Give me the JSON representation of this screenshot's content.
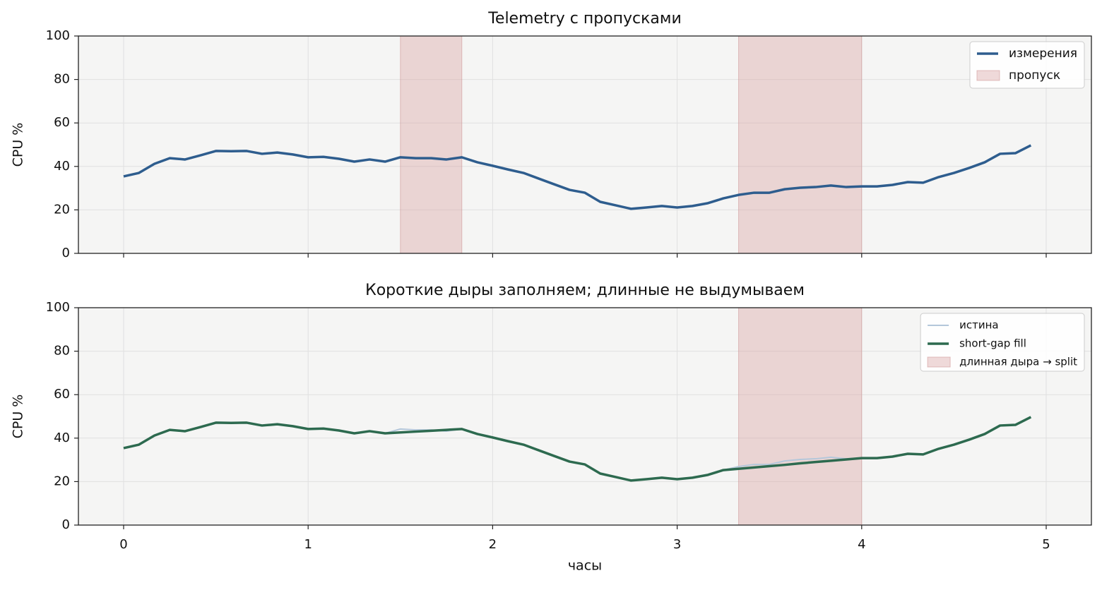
{
  "chart_data": [
    {
      "type": "line",
      "title": "Telemetry с пропусками",
      "ylabel": "CPU %",
      "x": [
        0,
        0.083,
        0.167,
        0.25,
        0.333,
        0.417,
        0.5,
        0.583,
        0.667,
        0.75,
        0.833,
        0.917,
        1.0,
        1.083,
        1.167,
        1.25,
        1.333,
        1.417,
        1.5,
        1.583,
        1.667,
        1.75,
        1.833,
        1.917,
        2.0,
        2.083,
        2.167,
        2.25,
        2.333,
        2.417,
        2.5,
        2.583,
        2.667,
        2.75,
        2.833,
        2.917,
        3.0,
        3.083,
        3.167,
        3.25,
        3.333,
        3.417,
        3.5,
        3.583,
        3.667,
        3.75,
        3.833,
        3.917,
        4.0,
        4.083,
        4.167,
        4.25,
        4.333,
        4.417,
        4.5,
        4.583,
        4.667,
        4.75,
        4.833,
        4.917
      ],
      "series": [
        {
          "name": "измерения",
          "color": "#2e5d8e",
          "width": 3.5,
          "values": [
            35.4,
            37,
            41.2,
            43.8,
            43.2,
            45.1,
            47.1,
            47,
            47.1,
            45.8,
            46.4,
            45.5,
            44.2,
            44.4,
            43.5,
            42.2,
            43.2,
            42.2,
            44.2,
            43.8,
            43.8,
            43.2,
            44.2,
            41.9,
            40.3,
            38.6,
            37,
            34.4,
            31.8,
            29.2,
            27.9,
            23.7,
            22.1,
            20.5,
            21.1,
            21.8,
            21.1,
            21.8,
            23.1,
            25.3,
            26.9,
            27.9,
            27.9,
            29.5,
            30.2,
            30.5,
            31.2,
            30.5,
            30.8,
            30.8,
            31.5,
            32.8,
            32.5,
            35.1,
            37,
            39.3,
            41.9,
            45.8,
            46.1,
            49.7
          ]
        }
      ],
      "spans": {
        "name": "пропуск",
        "color": "#d9a3a3",
        "ranges": [
          [
            1.5,
            1.833
          ],
          [
            3.333,
            4.0
          ]
        ]
      },
      "xlim": [
        -0.245,
        5.245
      ],
      "xticks": [
        0,
        1,
        2,
        3,
        4,
        5
      ],
      "ylim": [
        0,
        100
      ],
      "yticks": [
        0,
        20,
        40,
        60,
        80,
        100
      ],
      "grid": true,
      "legend": "upper right"
    },
    {
      "type": "line",
      "title": "Короткие дыры заполняем; длинные не выдумываем",
      "ylabel": "CPU %",
      "xlabel": "часы",
      "x": [
        0,
        0.083,
        0.167,
        0.25,
        0.333,
        0.417,
        0.5,
        0.583,
        0.667,
        0.75,
        0.833,
        0.917,
        1.0,
        1.083,
        1.167,
        1.25,
        1.333,
        1.417,
        1.5,
        1.583,
        1.667,
        1.75,
        1.833,
        1.917,
        2.0,
        2.083,
        2.167,
        2.25,
        2.333,
        2.417,
        2.5,
        2.583,
        2.667,
        2.75,
        2.833,
        2.917,
        3.0,
        3.083,
        3.167,
        3.25,
        3.333,
        3.417,
        3.5,
        3.583,
        3.667,
        3.75,
        3.833,
        3.917,
        4.0,
        4.083,
        4.167,
        4.25,
        4.333,
        4.417,
        4.5,
        4.583,
        4.667,
        4.75,
        4.833,
        4.917
      ],
      "series": [
        {
          "name": "истина",
          "color": "#b4c7da",
          "width": 2,
          "values": [
            35.4,
            37,
            41.2,
            43.8,
            43.2,
            45.1,
            47.1,
            47,
            47.1,
            45.8,
            46.4,
            45.5,
            44.2,
            44.4,
            43.5,
            42.2,
            43.2,
            42.2,
            44.2,
            43.8,
            43.8,
            43.2,
            44.2,
            41.9,
            40.3,
            38.6,
            37,
            34.4,
            31.8,
            29.2,
            27.9,
            23.7,
            22.1,
            20.5,
            21.1,
            21.8,
            21.1,
            21.8,
            23.1,
            25.3,
            26.9,
            27.9,
            27.9,
            29.5,
            30.2,
            30.5,
            31.2,
            30.5,
            30.8,
            30.8,
            31.5,
            32.8,
            32.5,
            35.1,
            37,
            39.3,
            41.9,
            45.8,
            46.1,
            49.7
          ]
        },
        {
          "name": "short-gap fill",
          "color": "#2d6a4f",
          "width": 3.5,
          "values": [
            35.4,
            37,
            41.2,
            43.8,
            43.2,
            45.1,
            47.1,
            47,
            47.1,
            45.8,
            46.4,
            45.5,
            44.2,
            44.4,
            43.5,
            42.2,
            43.2,
            42.2,
            42.6,
            43.0,
            43.4,
            43.8,
            44.2,
            41.9,
            40.3,
            38.6,
            37,
            34.4,
            31.8,
            29.2,
            27.9,
            23.7,
            22.1,
            20.5,
            21.1,
            21.8,
            21.1,
            21.8,
            23.1,
            25.3,
            25.9,
            26.5,
            27.1,
            27.7,
            28.4,
            29.0,
            29.6,
            30.2,
            30.8,
            30.8,
            31.5,
            32.8,
            32.5,
            35.1,
            37,
            39.3,
            41.9,
            45.8,
            46.1,
            49.7
          ]
        }
      ],
      "spans": {
        "name": "длинная дыра → split",
        "color": "#d9a3a3",
        "ranges": [
          [
            3.333,
            4.0
          ]
        ]
      },
      "xlim": [
        -0.245,
        5.245
      ],
      "xticks": [
        0,
        1,
        2,
        3,
        4,
        5
      ],
      "ylim": [
        0,
        100
      ],
      "yticks": [
        0,
        20,
        40,
        60,
        80,
        100
      ],
      "grid": true,
      "legend": "upper right"
    }
  ]
}
